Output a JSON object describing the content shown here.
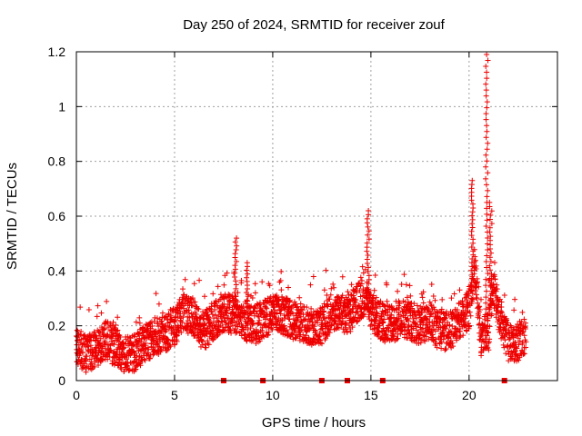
{
  "chart_data": {
    "type": "scatter",
    "title": "Day 250 of 2024, SRMTID for receiver zouf",
    "xlabel": "GPS time / hours",
    "ylabel": "SRMTID / TECUs",
    "xlim": [
      0,
      24.5
    ],
    "ylim": [
      0,
      1.2
    ],
    "xticks": [
      0,
      5,
      10,
      15,
      20
    ],
    "xtick_labels": [
      "0",
      "5",
      "10",
      "15",
      "20"
    ],
    "yticks": [
      0,
      0.2,
      0.4,
      0.6,
      0.8,
      1.0,
      1.2
    ],
    "ytick_labels": [
      "0",
      "0.2",
      "0.4",
      "0.6",
      "0.8",
      "1",
      "1.2"
    ],
    "grid": true,
    "marker": "+",
    "color": "#ee0000",
    "zero_markers_x": [
      7.5,
      9.5,
      12.5,
      13.8,
      15.6,
      21.8
    ],
    "baseline_profile": [
      [
        0.0,
        0.12
      ],
      [
        0.5,
        0.1
      ],
      [
        1.0,
        0.11
      ],
      [
        1.5,
        0.15
      ],
      [
        2.0,
        0.12
      ],
      [
        2.5,
        0.1
      ],
      [
        3.0,
        0.1
      ],
      [
        3.5,
        0.14
      ],
      [
        4.0,
        0.16
      ],
      [
        4.5,
        0.17
      ],
      [
        5.0,
        0.2
      ],
      [
        5.5,
        0.25
      ],
      [
        6.0,
        0.22
      ],
      [
        6.5,
        0.18
      ],
      [
        7.0,
        0.22
      ],
      [
        7.5,
        0.25
      ],
      [
        8.0,
        0.24
      ],
      [
        8.5,
        0.22
      ],
      [
        9.0,
        0.2
      ],
      [
        9.5,
        0.22
      ],
      [
        10.0,
        0.25
      ],
      [
        10.5,
        0.24
      ],
      [
        11.0,
        0.22
      ],
      [
        11.5,
        0.21
      ],
      [
        12.0,
        0.2
      ],
      [
        12.5,
        0.2
      ],
      [
        13.0,
        0.25
      ],
      [
        13.5,
        0.24
      ],
      [
        14.0,
        0.25
      ],
      [
        14.5,
        0.3
      ],
      [
        15.0,
        0.25
      ],
      [
        15.5,
        0.22
      ],
      [
        16.0,
        0.2
      ],
      [
        16.5,
        0.23
      ],
      [
        17.0,
        0.22
      ],
      [
        17.5,
        0.2
      ],
      [
        18.0,
        0.22
      ],
      [
        18.5,
        0.18
      ],
      [
        19.0,
        0.18
      ],
      [
        19.5,
        0.22
      ],
      [
        20.0,
        0.26
      ],
      [
        20.3,
        0.4
      ],
      [
        20.6,
        0.16
      ],
      [
        21.0,
        0.18
      ],
      [
        21.2,
        0.35
      ],
      [
        21.5,
        0.25
      ],
      [
        22.0,
        0.14
      ],
      [
        22.5,
        0.14
      ],
      [
        22.9,
        0.17
      ]
    ],
    "peaks": [
      {
        "x": 8.1,
        "y": 0.52
      },
      {
        "x": 8.7,
        "y": 0.43
      },
      {
        "x": 14.85,
        "y": 0.62
      },
      {
        "x": 20.15,
        "y": 0.73
      },
      {
        "x": 20.9,
        "y": 1.19
      },
      {
        "x": 21.1,
        "y": 0.65
      }
    ]
  }
}
